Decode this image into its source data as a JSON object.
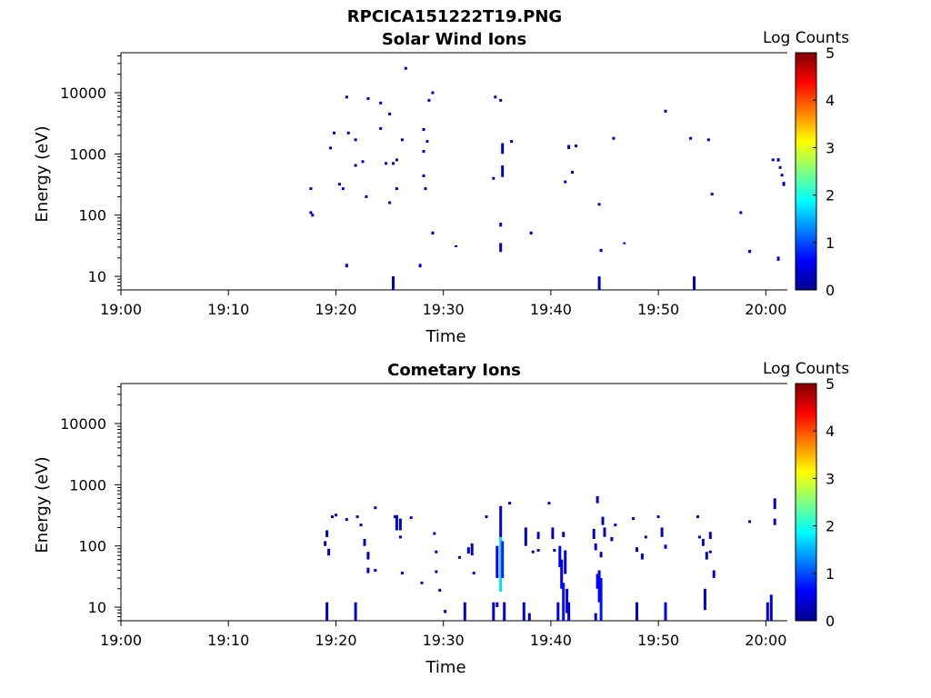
{
  "figure_title": "RPCICA151222T19.PNG",
  "chart_data": [
    {
      "type": "heatmap",
      "title": "Solar Wind Ions",
      "xlabel": "Time",
      "ylabel": "Energy (eV)",
      "x_ticks": [
        "19:00",
        "19:10",
        "19:20",
        "19:30",
        "19:40",
        "19:50",
        "20:00"
      ],
      "xlim": [
        "19:00",
        "20:02"
      ],
      "y_scale": "log",
      "y_ticks": [
        10,
        100,
        1000,
        10000
      ],
      "ylim": [
        6,
        45000
      ],
      "colorbar": {
        "label": "Log Counts",
        "ticks": [
          0,
          1,
          2,
          3,
          4,
          5
        ],
        "range": [
          0,
          5
        ],
        "colormap": "jet"
      },
      "points": [
        {
          "t": "19:17:40",
          "e": 270,
          "v": 0.2
        },
        {
          "t": "19:17:40",
          "e": 110,
          "v": 0.2
        },
        {
          "t": "19:17:50",
          "e": 100,
          "v": 0.2
        },
        {
          "t": "19:19:30",
          "e": 1250,
          "v": 0.2
        },
        {
          "t": "19:19:50",
          "e": 2200,
          "v": 0.2
        },
        {
          "t": "19:20:20",
          "e": 320,
          "v": 0.2
        },
        {
          "t": "19:20:40",
          "e": 270,
          "v": 0.2
        },
        {
          "t": "19:21:00",
          "e": 8500,
          "v": 0.2
        },
        {
          "t": "19:21:10",
          "e": 2200,
          "v": 0.2
        },
        {
          "t": "19:21:00",
          "e": 14,
          "e2": 16,
          "v": 0.3
        },
        {
          "t": "19:21:50",
          "e": 1700,
          "v": 0.2
        },
        {
          "t": "19:21:50",
          "e": 650,
          "v": 0.2
        },
        {
          "t": "19:22:30",
          "e": 750,
          "v": 0.2
        },
        {
          "t": "19:22:50",
          "e": 200,
          "v": 0.2
        },
        {
          "t": "19:23:00",
          "e": 8000,
          "v": 0.2
        },
        {
          "t": "19:24:10",
          "e": 2600,
          "v": 0.2
        },
        {
          "t": "19:24:10",
          "e": 6800,
          "v": 0.2
        },
        {
          "t": "19:24:40",
          "e": 700,
          "v": 0.2
        },
        {
          "t": "19:25:00",
          "e": 4500,
          "v": 0.2
        },
        {
          "t": "19:25:00",
          "e": 160,
          "v": 0.2
        },
        {
          "t": "19:25:20",
          "e": 700,
          "v": 0.2
        },
        {
          "t": "19:25:20",
          "e": 6,
          "e2": 10,
          "v": 0.3
        },
        {
          "t": "19:25:40",
          "e": 800,
          "v": 0.2
        },
        {
          "t": "19:25:40",
          "e": 270,
          "v": 0.2
        },
        {
          "t": "19:26:10",
          "e": 1700,
          "v": 0.2
        },
        {
          "t": "19:26:30",
          "e": 25000,
          "v": 0.2
        },
        {
          "t": "19:27:50",
          "e": 14,
          "e2": 16,
          "v": 0.3
        },
        {
          "t": "19:28:10",
          "e": 2500,
          "v": 0.2
        },
        {
          "t": "19:28:10",
          "e": 1100,
          "v": 0.2
        },
        {
          "t": "19:28:10",
          "e": 440,
          "v": 0.2
        },
        {
          "t": "19:28:20",
          "e": 270,
          "v": 0.2
        },
        {
          "t": "19:28:30",
          "e": 1600,
          "v": 0.2
        },
        {
          "t": "19:28:40",
          "e": 7500,
          "v": 0.2
        },
        {
          "t": "19:29:00",
          "e": 10000,
          "v": 0.2
        },
        {
          "t": "19:29:00",
          "e": 48,
          "e2": 54,
          "v": 0.3
        },
        {
          "t": "19:31:10",
          "e": 30,
          "e2": 32,
          "v": 0.3
        },
        {
          "t": "19:34:40",
          "e": 400,
          "v": 0.2
        },
        {
          "t": "19:34:50",
          "e": 8500,
          "v": 0.2
        },
        {
          "t": "19:35:20",
          "e": 7500,
          "v": 0.2
        },
        {
          "t": "19:35:30",
          "e": 1000,
          "e2": 1500,
          "v": 0.3
        },
        {
          "t": "19:35:30",
          "e": 420,
          "e2": 650,
          "v": 0.3
        },
        {
          "t": "19:35:20",
          "e": 65,
          "e2": 75,
          "v": 0.3
        },
        {
          "t": "19:35:20",
          "e": 25,
          "e2": 35,
          "v": 0.3
        },
        {
          "t": "19:36:20",
          "e": 1600,
          "v": 0.2
        },
        {
          "t": "19:38:10",
          "e": 48,
          "e2": 54,
          "v": 0.3
        },
        {
          "t": "19:41:20",
          "e": 350,
          "v": 0.2
        },
        {
          "t": "19:41:40",
          "e": 1200,
          "e2": 1400,
          "v": 0.3
        },
        {
          "t": "19:42:00",
          "e": 500,
          "v": 0.2
        },
        {
          "t": "19:42:20",
          "e": 1350,
          "v": 0.2
        },
        {
          "t": "19:44:30",
          "e": 150,
          "v": 0.2
        },
        {
          "t": "19:44:40",
          "e": 25,
          "e2": 28,
          "v": 0.3
        },
        {
          "t": "19:44:30",
          "e": 6,
          "e2": 10,
          "v": 0.3
        },
        {
          "t": "19:45:50",
          "e": 1800,
          "v": 0.2
        },
        {
          "t": "19:46:50",
          "e": 34,
          "e2": 36,
          "v": 0.3
        },
        {
          "t": "19:50:40",
          "e": 5000,
          "v": 0.2
        },
        {
          "t": "19:53:00",
          "e": 1800,
          "v": 0.2
        },
        {
          "t": "19:53:20",
          "e": 6,
          "e2": 10,
          "v": 0.3
        },
        {
          "t": "19:54:40",
          "e": 1700,
          "v": 0.2
        },
        {
          "t": "19:55:00",
          "e": 220,
          "v": 0.2
        },
        {
          "t": "19:57:40",
          "e": 110,
          "v": 0.2
        },
        {
          "t": "19:58:30",
          "e": 24,
          "e2": 27,
          "v": 0.3
        },
        {
          "t": "20:00:40",
          "e": 800,
          "v": 0.2
        },
        {
          "t": "20:01:10",
          "e": 750,
          "e2": 850,
          "v": 0.3
        },
        {
          "t": "20:01:20",
          "e": 600,
          "v": 0.2
        },
        {
          "t": "20:01:30",
          "e": 450,
          "v": 0.2
        },
        {
          "t": "20:01:40",
          "e": 300,
          "e2": 350,
          "v": 0.3
        },
        {
          "t": "20:01:10",
          "e": 18,
          "e2": 21,
          "v": 0.3
        }
      ]
    },
    {
      "type": "heatmap",
      "title": "Cometary Ions",
      "xlabel": "Time",
      "ylabel": "Energy (eV)",
      "x_ticks": [
        "19:00",
        "19:10",
        "19:20",
        "19:30",
        "19:40",
        "19:50",
        "20:00"
      ],
      "xlim": [
        "19:00",
        "20:02"
      ],
      "y_scale": "log",
      "y_ticks": [
        10,
        100,
        1000,
        10000
      ],
      "ylim": [
        6,
        45000
      ],
      "colorbar": {
        "label": "Log Counts",
        "ticks": [
          0,
          1,
          2,
          3,
          4,
          5
        ],
        "range": [
          0,
          5
        ],
        "colormap": "jet"
      },
      "points": [
        {
          "t": "19:19:10",
          "e": 6,
          "e2": 12,
          "v": 0.4
        },
        {
          "t": "19:19:10",
          "e": 140,
          "e2": 180,
          "v": 0.3
        },
        {
          "t": "19:19:00",
          "e": 100,
          "e2": 120,
          "v": 0.3
        },
        {
          "t": "19:19:20",
          "e": 70,
          "e2": 90,
          "v": 0.3
        },
        {
          "t": "19:19:40",
          "e": 300,
          "v": 0.2
        },
        {
          "t": "19:20:00",
          "e": 320,
          "v": 0.2
        },
        {
          "t": "19:21:00",
          "e": 270,
          "v": 0.2
        },
        {
          "t": "19:21:50",
          "e": 6,
          "e2": 12,
          "v": 0.4
        },
        {
          "t": "19:22:00",
          "e": 300,
          "v": 0.2
        },
        {
          "t": "19:22:20",
          "e": 220,
          "v": 0.2
        },
        {
          "t": "19:22:40",
          "e": 100,
          "e2": 130,
          "v": 0.3
        },
        {
          "t": "19:23:00",
          "e": 60,
          "e2": 80,
          "v": 0.3
        },
        {
          "t": "19:23:00",
          "e": 36,
          "e2": 44,
          "v": 0.3
        },
        {
          "t": "19:23:40",
          "e": 420,
          "v": 0.2
        },
        {
          "t": "19:23:40",
          "e": 40,
          "v": 0.2
        },
        {
          "t": "19:25:30",
          "e": 300,
          "v": 0.2
        },
        {
          "t": "19:25:40",
          "e": 180,
          "e2": 320,
          "v": 0.4
        },
        {
          "t": "19:26:00",
          "e": 180,
          "e2": 280,
          "v": 0.4
        },
        {
          "t": "19:26:10",
          "e": 36,
          "v": 0.2
        },
        {
          "t": "19:26:00",
          "e": 140,
          "v": 0.2
        },
        {
          "t": "19:27:00",
          "e": 290,
          "v": 0.2
        },
        {
          "t": "19:28:00",
          "e": 25,
          "v": 0.2
        },
        {
          "t": "19:29:10",
          "e": 160,
          "v": 0.2
        },
        {
          "t": "19:29:20",
          "e": 80,
          "v": 0.2
        },
        {
          "t": "19:29:20",
          "e": 38,
          "v": 0.2
        },
        {
          "t": "19:29:40",
          "e": 18,
          "e2": 20,
          "v": 0.3
        },
        {
          "t": "19:30:10",
          "e": 8,
          "e2": 9,
          "v": 0.2
        },
        {
          "t": "19:31:30",
          "e": 65,
          "v": 0.2
        },
        {
          "t": "19:32:00",
          "e": 6,
          "e2": 12,
          "v": 0.4
        },
        {
          "t": "19:32:20",
          "e": 75,
          "e2": 95,
          "v": 0.3
        },
        {
          "t": "19:32:40",
          "e": 70,
          "e2": 110,
          "v": 0.3
        },
        {
          "t": "19:32:50",
          "e": 36,
          "v": 0.2
        },
        {
          "t": "19:34:00",
          "e": 300,
          "v": 0.2
        },
        {
          "t": "19:34:40",
          "e": 6,
          "e2": 12,
          "v": 0.4
        },
        {
          "t": "19:35:00",
          "e": 10,
          "e2": 12,
          "v": 0.4
        },
        {
          "t": "19:35:00",
          "e": 30,
          "e2": 100,
          "v": 0.6
        },
        {
          "t": "19:35:20",
          "e": 140,
          "e2": 450,
          "v": 0.5
        },
        {
          "t": "19:35:20",
          "e": 18,
          "e2": 140,
          "v": 1.7
        },
        {
          "t": "19:35:30",
          "e": 30,
          "e2": 120,
          "v": 0.8
        },
        {
          "t": "19:35:40",
          "e": 6,
          "e2": 12,
          "v": 0.4
        },
        {
          "t": "19:36:10",
          "e": 500,
          "v": 0.2
        },
        {
          "t": "19:37:30",
          "e": 6,
          "e2": 12,
          "v": 0.4
        },
        {
          "t": "19:37:40",
          "e": 100,
          "e2": 200,
          "v": 0.3
        },
        {
          "t": "19:38:00",
          "e": 6,
          "e2": 8,
          "v": 0.3
        },
        {
          "t": "19:38:20",
          "e": 80,
          "v": 0.2
        },
        {
          "t": "19:38:50",
          "e": 130,
          "e2": 170,
          "v": 0.3
        },
        {
          "t": "19:38:50",
          "e": 85,
          "v": 0.2
        },
        {
          "t": "19:39:50",
          "e": 500,
          "v": 0.2
        },
        {
          "t": "19:40:10",
          "e": 130,
          "e2": 200,
          "v": 0.3
        },
        {
          "t": "19:40:20",
          "e": 85,
          "v": 0.2
        },
        {
          "t": "19:40:40",
          "e": 6,
          "e2": 12,
          "v": 0.5
        },
        {
          "t": "19:40:50",
          "e": 45,
          "e2": 100,
          "v": 0.6
        },
        {
          "t": "19:41:00",
          "e": 20,
          "e2": 60,
          "v": 0.5
        },
        {
          "t": "19:41:10",
          "e": 6,
          "e2": 25,
          "v": 0.7
        },
        {
          "t": "19:41:20",
          "e": 35,
          "e2": 85,
          "v": 0.5
        },
        {
          "t": "19:41:30",
          "e": 8,
          "e2": 20,
          "v": 0.5
        },
        {
          "t": "19:41:40",
          "e": 6,
          "e2": 12,
          "v": 0.4
        },
        {
          "t": "19:41:10",
          "e": 140,
          "e2": 170,
          "v": 0.3
        },
        {
          "t": "19:44:00",
          "e": 130,
          "e2": 190,
          "v": 0.3
        },
        {
          "t": "19:44:10",
          "e": 85,
          "e2": 110,
          "v": 0.3
        },
        {
          "t": "19:44:10",
          "e": 6,
          "e2": 8,
          "v": 0.3
        },
        {
          "t": "19:44:20",
          "e": 500,
          "e2": 650,
          "v": 0.3
        },
        {
          "t": "19:44:20",
          "e": 20,
          "e2": 35,
          "v": 0.6
        },
        {
          "t": "19:44:30",
          "e": 12,
          "e2": 40,
          "v": 0.6
        },
        {
          "t": "19:44:40",
          "e": 6,
          "e2": 30,
          "v": 0.7
        },
        {
          "t": "19:44:40",
          "e": 65,
          "e2": 80,
          "v": 0.3
        },
        {
          "t": "19:44:50",
          "e": 220,
          "e2": 300,
          "v": 0.3
        },
        {
          "t": "19:45:00",
          "e": 140,
          "e2": 200,
          "v": 0.3
        },
        {
          "t": "19:45:40",
          "e": 120,
          "e2": 140,
          "v": 0.3
        },
        {
          "t": "19:46:00",
          "e": 220,
          "v": 0.2
        },
        {
          "t": "19:47:40",
          "e": 280,
          "v": 0.2
        },
        {
          "t": "19:48:00",
          "e": 80,
          "e2": 95,
          "v": 0.3
        },
        {
          "t": "19:48:00",
          "e": 6,
          "e2": 12,
          "v": 0.4
        },
        {
          "t": "19:48:30",
          "e": 60,
          "e2": 75,
          "v": 0.3
        },
        {
          "t": "19:48:50",
          "e": 140,
          "v": 0.2
        },
        {
          "t": "19:50:00",
          "e": 300,
          "v": 0.2
        },
        {
          "t": "19:50:20",
          "e": 140,
          "e2": 200,
          "v": 0.3
        },
        {
          "t": "19:50:40",
          "e": 6,
          "e2": 12,
          "v": 0.4
        },
        {
          "t": "19:50:40",
          "e": 90,
          "e2": 105,
          "v": 0.3
        },
        {
          "t": "19:53:40",
          "e": 300,
          "v": 0.2
        },
        {
          "t": "19:53:50",
          "e": 140,
          "v": 0.2
        },
        {
          "t": "19:54:10",
          "e": 100,
          "e2": 130,
          "v": 0.3
        },
        {
          "t": "19:54:20",
          "e": 9,
          "e2": 20,
          "v": 0.4
        },
        {
          "t": "19:54:30",
          "e": 60,
          "e2": 80,
          "v": 0.3
        },
        {
          "t": "19:54:50",
          "e": 130,
          "e2": 170,
          "v": 0.3
        },
        {
          "t": "19:54:50",
          "e": 80,
          "v": 0.2
        },
        {
          "t": "19:55:10",
          "e": 30,
          "e2": 40,
          "v": 0.3
        },
        {
          "t": "19:58:30",
          "e": 250,
          "v": 0.2
        },
        {
          "t": "20:00:10",
          "e": 6,
          "e2": 12,
          "v": 0.4
        },
        {
          "t": "20:00:30",
          "e": 6,
          "e2": 16,
          "v": 0.5
        },
        {
          "t": "20:00:50",
          "e": 220,
          "e2": 280,
          "v": 0.3
        },
        {
          "t": "20:00:50",
          "e": 400,
          "e2": 600,
          "v": 0.3
        }
      ]
    }
  ]
}
